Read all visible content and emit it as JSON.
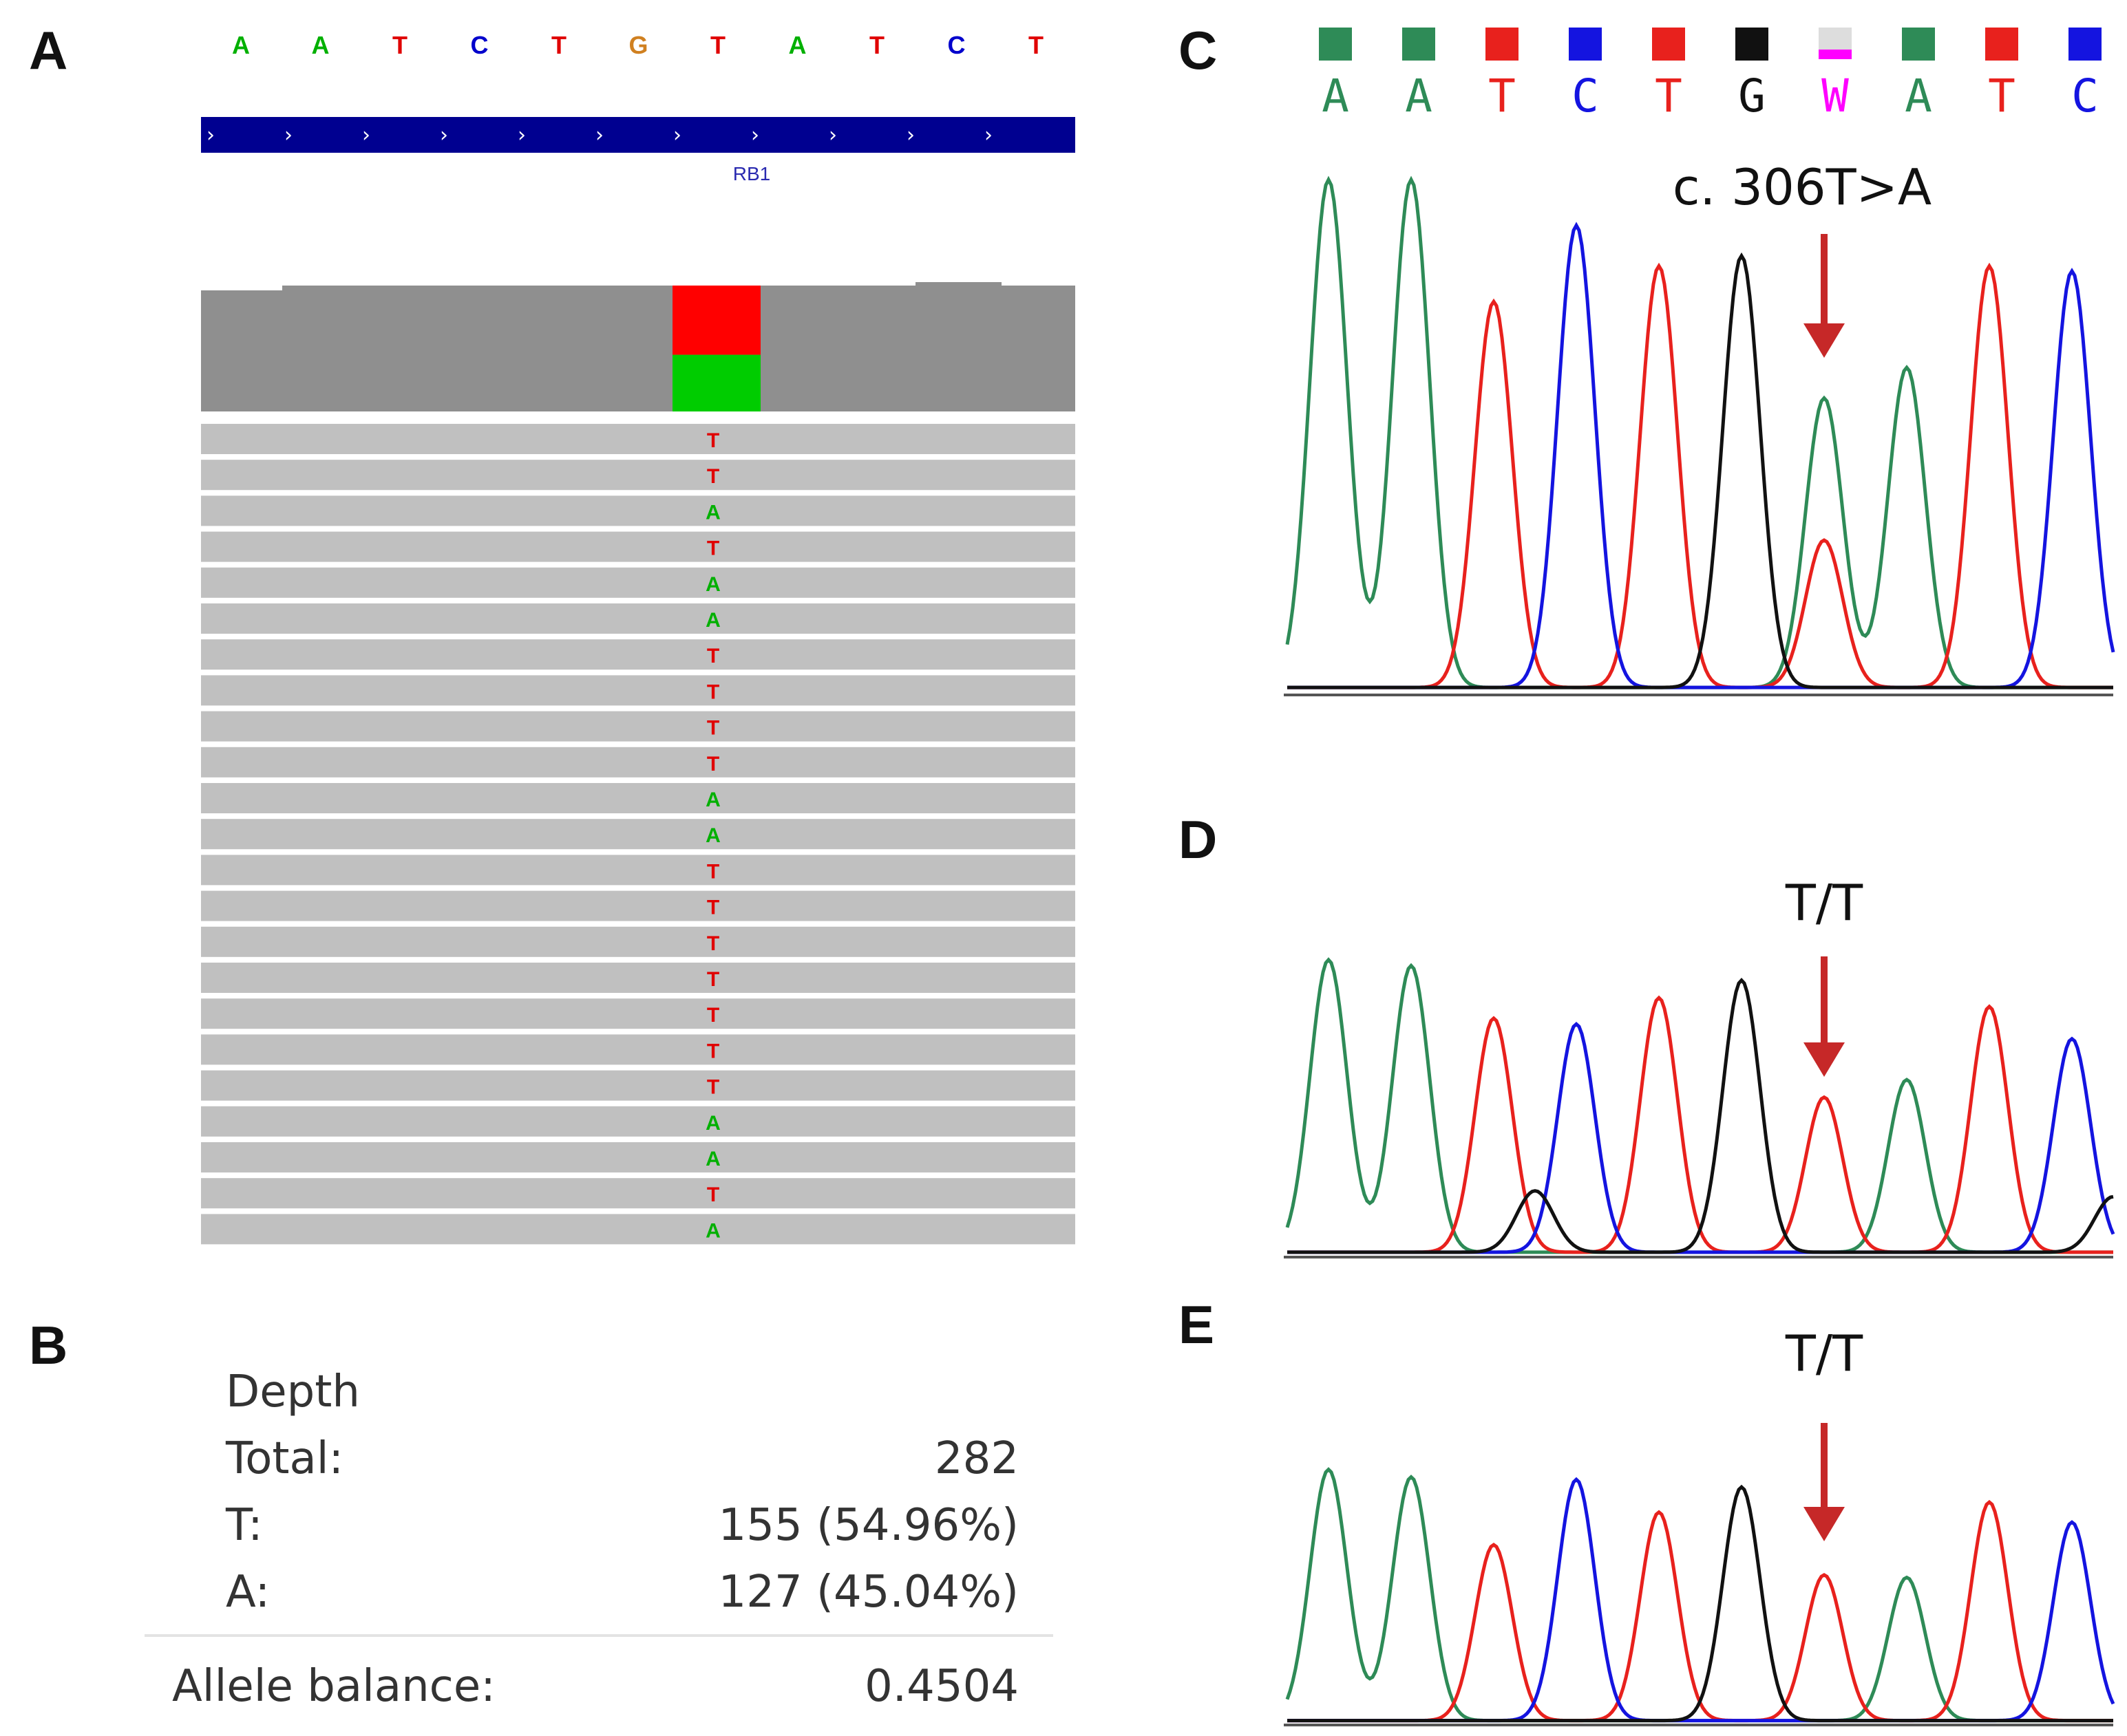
{
  "panels": {
    "A": "A",
    "B": "B",
    "C": "C",
    "D": "D",
    "E": "E"
  },
  "igv": {
    "reference_sequence": [
      "A",
      "A",
      "T",
      "C",
      "T",
      "G",
      "T",
      "A",
      "T",
      "C",
      "T"
    ],
    "gene_name": "RB1",
    "strand_glyph": "›",
    "coverage_alleles": {
      "T_fraction": 0.5496,
      "A_fraction": 0.4504
    },
    "reads": [
      "T",
      "T",
      "A",
      "T",
      "A",
      "A",
      "T",
      "T",
      "T",
      "T",
      "A",
      "A",
      "T",
      "T",
      "T",
      "T",
      "T",
      "T",
      "T",
      "A",
      "A",
      "T",
      "A"
    ]
  },
  "depth_stats": {
    "heading": "Depth",
    "total_label": "Total:",
    "total_value": "282",
    "t_label": "T:",
    "t_value": "155 (54.96%)",
    "a_label": "A:",
    "a_value": "127 (45.04%)",
    "balance_label": "Allele balance:",
    "balance_value": "0.4504"
  },
  "chromatograms": {
    "base_calls": [
      "A",
      "A",
      "T",
      "C",
      "T",
      "G",
      "W",
      "A",
      "T",
      "C"
    ],
    "C_annotation": "c. 306T>A",
    "D_annotation": "T/T",
    "E_annotation": "T/T"
  },
  "colors": {
    "A": "#00b000",
    "T": "#e00000",
    "C": "#0000cc",
    "G": "#d08020",
    "trace_A": "#2e8b57",
    "trace_T": "#e8211d",
    "trace_C": "#1414e0",
    "trace_G": "#111111",
    "arrow": "#c62828",
    "gene_bar": "#000090",
    "W": "#ff00ff"
  },
  "chart_data": [
    {
      "type": "line",
      "title": "C",
      "annotation": "c. 306T>A",
      "x": [
        "A",
        "A",
        "T",
        "C",
        "T",
        "G",
        "W",
        "A",
        "T",
        "C"
      ],
      "series": [
        {
          "name": "A",
          "values": [
            [
              0,
              1.0
            ],
            [
              1,
              1.0
            ],
            [
              6,
              0.57
            ],
            [
              7,
              0.63
            ]
          ]
        },
        {
          "name": "T",
          "values": [
            [
              2,
              0.76
            ],
            [
              4,
              0.83
            ],
            [
              6,
              0.29
            ],
            [
              8,
              0.83
            ]
          ]
        },
        {
          "name": "C",
          "values": [
            [
              3,
              0.91
            ],
            [
              9,
              0.82
            ]
          ]
        },
        {
          "name": "G",
          "values": [
            [
              5,
              0.85
            ]
          ]
        }
      ],
      "ylim": [
        0,
        1
      ]
    },
    {
      "type": "line",
      "title": "D",
      "annotation": "T/T",
      "x": [
        "A",
        "A",
        "T",
        "C",
        "T",
        "G",
        "T",
        "A",
        "T",
        "C"
      ],
      "series": [
        {
          "name": "A",
          "values": [
            [
              0,
              1.0
            ],
            [
              1,
              0.98
            ],
            [
              7,
              0.59
            ]
          ]
        },
        {
          "name": "T",
          "values": [
            [
              2,
              0.8
            ],
            [
              4,
              0.87
            ],
            [
              6,
              0.53
            ],
            [
              8,
              0.84
            ]
          ]
        },
        {
          "name": "C",
          "values": [
            [
              3,
              0.78
            ],
            [
              9,
              0.73
            ]
          ]
        },
        {
          "name": "G",
          "values": [
            [
              2.5,
              0.21
            ],
            [
              5,
              0.93
            ],
            [
              9.5,
              0.19
            ]
          ]
        }
      ],
      "ylim": [
        0,
        1
      ]
    },
    {
      "type": "line",
      "title": "E",
      "annotation": "T/T",
      "x": [
        "A",
        "A",
        "T",
        "C",
        "T",
        "G",
        "T",
        "A",
        "T",
        "C"
      ],
      "series": [
        {
          "name": "A",
          "values": [
            [
              0,
              1.0
            ],
            [
              1,
              0.97
            ],
            [
              7,
              0.57
            ]
          ]
        },
        {
          "name": "T",
          "values": [
            [
              2,
              0.7
            ],
            [
              4,
              0.83
            ],
            [
              6,
              0.58
            ],
            [
              8,
              0.87
            ]
          ]
        },
        {
          "name": "C",
          "values": [
            [
              3,
              0.96
            ],
            [
              9,
              0.79
            ]
          ]
        },
        {
          "name": "G",
          "values": [
            [
              5,
              0.93
            ]
          ]
        }
      ],
      "ylim": [
        0,
        1
      ]
    }
  ]
}
